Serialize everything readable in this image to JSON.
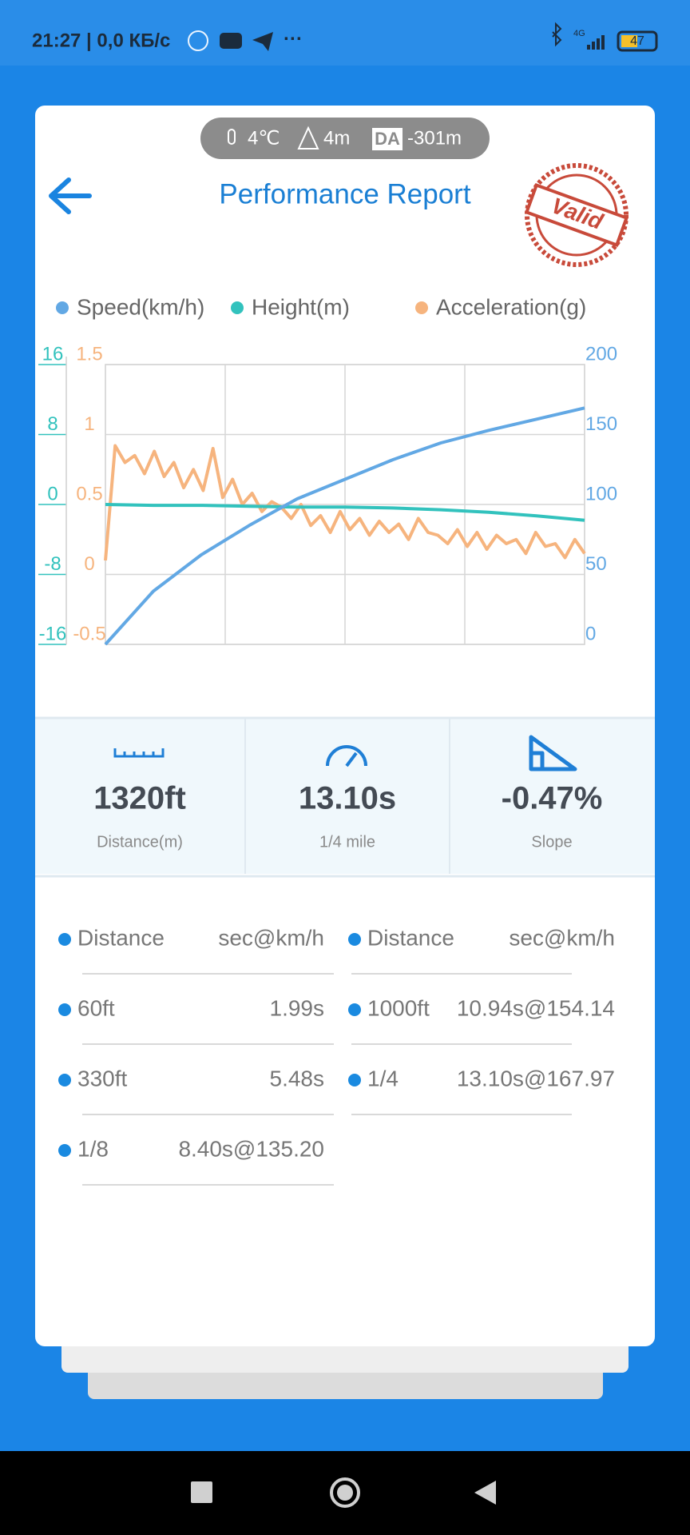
{
  "status_bar": {
    "time": "21:27 | 0,0 КБ/с",
    "network": "4G",
    "battery": "47"
  },
  "conditions": {
    "temperature": "4℃",
    "altitude": "4m",
    "da_label": "DA",
    "density_altitude": "-301m"
  },
  "header": {
    "title": "Performance Report",
    "stamp": "Valid"
  },
  "chart": {
    "type": "line",
    "grid": true,
    "series": [
      {
        "name": "Speed(km/h)",
        "color": "#62a8e4",
        "axis": "y",
        "values": [
          0,
          38,
          64,
          85,
          104,
          118,
          132,
          144,
          153,
          161,
          169
        ]
      },
      {
        "name": "Height(m)",
        "color": "#32c2bd",
        "axis": "y2",
        "values": [
          0,
          -0.1,
          -0.1,
          -0.2,
          -0.3,
          -0.3,
          -0.4,
          -0.6,
          -0.9,
          -1.3,
          -1.8
        ]
      },
      {
        "name": "Acceleration(g)",
        "color": "#f6b47e",
        "axis": "y3",
        "values": [
          0.1,
          0.92,
          0.8,
          0.85,
          0.72,
          0.88,
          0.7,
          0.8,
          0.62,
          0.75,
          0.6,
          0.9,
          0.55,
          0.68,
          0.5,
          0.58,
          0.45,
          0.52,
          0.48,
          0.4,
          0.5,
          0.35,
          0.42,
          0.3,
          0.45,
          0.32,
          0.4,
          0.28,
          0.38,
          0.3,
          0.36,
          0.25,
          0.4,
          0.3,
          0.28,
          0.22,
          0.32,
          0.2,
          0.3,
          0.18,
          0.28,
          0.22,
          0.25,
          0.15,
          0.3,
          0.2,
          0.22,
          0.12,
          0.25,
          0.15
        ]
      }
    ],
    "ylim": [
      0,
      200
    ],
    "yticks": [
      0,
      50,
      100,
      150,
      200
    ],
    "y2lim": [
      -16,
      16
    ],
    "y2ticks": [
      -16,
      -8,
      0,
      8,
      16
    ],
    "y3lim": [
      -0.5,
      1.5
    ],
    "y3ticks": [
      -0.5,
      0,
      0.5,
      1,
      1.5
    ]
  },
  "summary": [
    {
      "value": "1320ft",
      "label": "Distance(m)"
    },
    {
      "value": "13.10s",
      "label": "1/4 mile"
    },
    {
      "value": "-0.47%",
      "label": "Slope"
    }
  ],
  "table": {
    "header": [
      "Distance",
      "sec@km/h",
      "Distance",
      "sec@km/h"
    ],
    "rows": [
      [
        "60ft",
        "1.99s",
        "1000ft",
        "10.94s@154.14"
      ],
      [
        "330ft",
        "5.48s",
        "1/4",
        "13.10s@167.97"
      ],
      [
        "1/8",
        "8.40s@135.20"
      ]
    ]
  }
}
